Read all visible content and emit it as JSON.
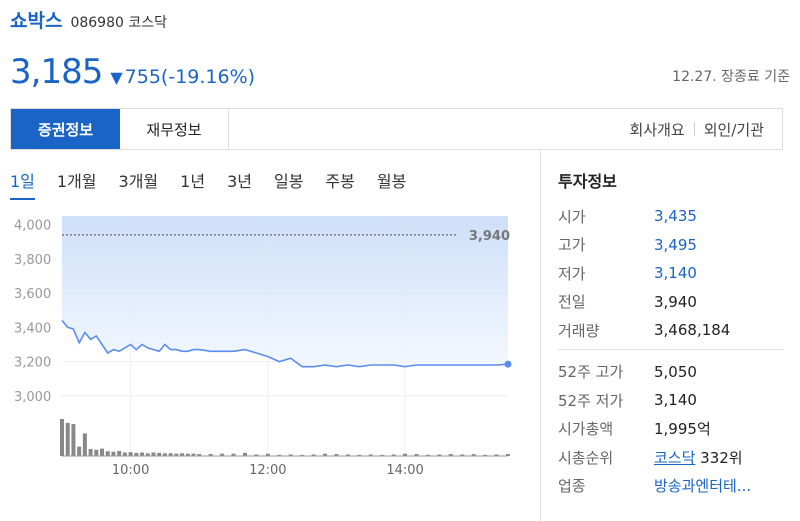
{
  "stock": {
    "name": "쇼박스",
    "code": "086980",
    "market": "코스닥",
    "price": "3,185",
    "change_arrow": "▼",
    "change": "755(-19.16%)",
    "as_of": "12.27. 장종료 기준"
  },
  "tabs": {
    "left": [
      "증권정보",
      "재무정보"
    ],
    "right": [
      "회사개요",
      "외인/기관"
    ]
  },
  "periods": [
    "1일",
    "1개월",
    "3개월",
    "1년",
    "3년",
    "일봉",
    "주봉",
    "월봉"
  ],
  "info": {
    "title": "투자정보",
    "rows": [
      {
        "label": "시가",
        "value": "3,435"
      },
      {
        "label": "고가",
        "value": "3,495"
      },
      {
        "label": "저가",
        "value": "3,140"
      },
      {
        "label": "전일",
        "value": "3,940"
      },
      {
        "label": "거래량",
        "value": "3,468,184"
      }
    ],
    "rows2": [
      {
        "label": "52주 고가",
        "value": "5,050"
      },
      {
        "label": "52주 저가",
        "value": "3,140"
      },
      {
        "label": "시가총액",
        "value": "1,995",
        "unit": "억"
      },
      {
        "label": "시총순위",
        "value": "코스닥",
        "unit": " 332위"
      },
      {
        "label": "업종",
        "value": "방송과엔터테..."
      }
    ]
  },
  "colors": {
    "accent": "#1a64c7",
    "line": "#5b8def",
    "fill": "#dce9fb"
  },
  "chart_data": {
    "type": "line",
    "ylim": [
      2900,
      4050
    ],
    "y_ticks": [
      3000,
      3200,
      3400,
      3600,
      3800,
      4000
    ],
    "y_tick_labels": [
      "3,000",
      "3,200",
      "3,400",
      "3,600",
      "3,800",
      "4,000"
    ],
    "x_ticks": [
      "10:00",
      "12:00",
      "14:00"
    ],
    "x_tick_positions": [
      60,
      180,
      300
    ],
    "time_range": [
      0,
      390
    ],
    "reference": {
      "value": 3940,
      "label": "3,940"
    },
    "series": [
      {
        "x": [
          0,
          5,
          10,
          15,
          20,
          25,
          30,
          35,
          40,
          45,
          50,
          55,
          60,
          65,
          70,
          75,
          80,
          85,
          90,
          95,
          100,
          105,
          110,
          115,
          120,
          130,
          140,
          150,
          160,
          170,
          180,
          190,
          200,
          210,
          220,
          230,
          240,
          250,
          260,
          270,
          280,
          290,
          300,
          310,
          320,
          330,
          340,
          350,
          360,
          370,
          380,
          390
        ],
        "y": [
          3440,
          3400,
          3390,
          3310,
          3370,
          3330,
          3350,
          3300,
          3250,
          3270,
          3260,
          3280,
          3300,
          3270,
          3300,
          3280,
          3270,
          3260,
          3300,
          3270,
          3270,
          3260,
          3260,
          3270,
          3270,
          3260,
          3260,
          3260,
          3270,
          3250,
          3230,
          3200,
          3220,
          3170,
          3170,
          3180,
          3170,
          3180,
          3170,
          3180,
          3180,
          3180,
          3170,
          3180,
          3180,
          3180,
          3180,
          3180,
          3180,
          3180,
          3180,
          3185
        ]
      }
    ],
    "volume": [
      950,
      850,
      820,
      240,
      580,
      180,
      160,
      190,
      120,
      110,
      130,
      90,
      100,
      80,
      90,
      70,
      90,
      80,
      70,
      70,
      60,
      70,
      60,
      60,
      50,
      50,
      60,
      60,
      80,
      40,
      60,
      30,
      40,
      30,
      40,
      60,
      50,
      40,
      30,
      40,
      30,
      40,
      60,
      50,
      30,
      40,
      50,
      40,
      50,
      30,
      40,
      50
    ]
  }
}
